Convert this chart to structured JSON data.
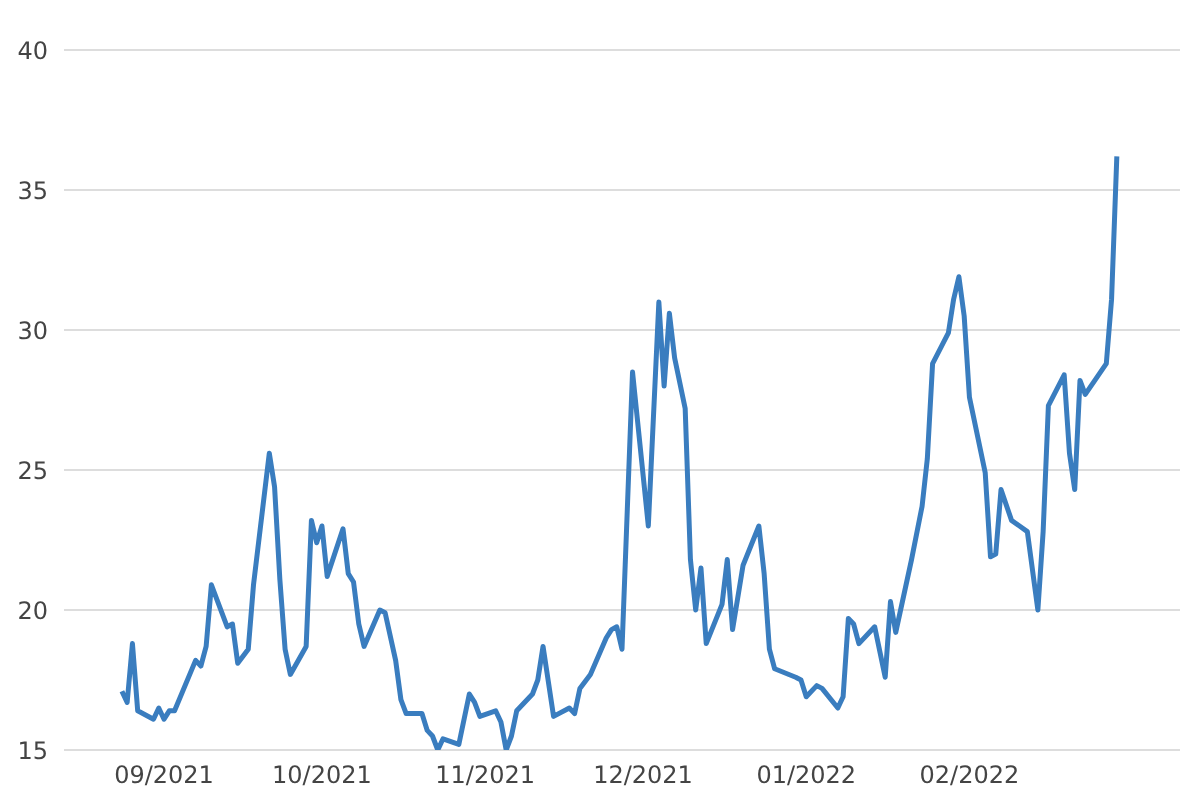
{
  "chart_data": {
    "type": "line",
    "x": [
      "2021-08-24",
      "2021-08-25",
      "2021-08-26",
      "2021-08-27",
      "2021-08-30",
      "2021-08-31",
      "2021-09-01",
      "2021-09-02",
      "2021-09-03",
      "2021-09-07",
      "2021-09-08",
      "2021-09-09",
      "2021-09-10",
      "2021-09-13",
      "2021-09-14",
      "2021-09-15",
      "2021-09-17",
      "2021-09-18",
      "2021-09-21",
      "2021-09-22",
      "2021-09-23",
      "2021-09-24",
      "2021-09-25",
      "2021-09-28",
      "2021-09-29",
      "2021-09-30",
      "2021-10-01",
      "2021-10-02",
      "2021-10-05",
      "2021-10-06",
      "2021-10-07",
      "2021-10-08",
      "2021-10-09",
      "2021-10-12",
      "2021-10-13",
      "2021-10-15",
      "2021-10-16",
      "2021-10-17",
      "2021-10-20",
      "2021-10-21",
      "2021-10-22",
      "2021-10-23",
      "2021-10-24",
      "2021-10-27",
      "2021-10-29",
      "2021-10-30",
      "2021-10-31",
      "2021-11-03",
      "2021-11-04",
      "2021-11-05",
      "2021-11-06",
      "2021-11-07",
      "2021-11-10",
      "2021-11-11",
      "2021-11-12",
      "2021-11-14",
      "2021-11-17",
      "2021-11-18",
      "2021-11-19",
      "2021-11-21",
      "2021-11-24",
      "2021-11-25",
      "2021-11-26",
      "2021-11-27",
      "2021-11-29",
      "2021-12-02",
      "2021-12-04",
      "2021-12-05",
      "2021-12-06",
      "2021-12-07",
      "2021-12-09",
      "2021-12-10",
      "2021-12-11",
      "2021-12-12",
      "2021-12-13",
      "2021-12-16",
      "2021-12-17",
      "2021-12-18",
      "2021-12-20",
      "2021-12-23",
      "2021-12-24",
      "2021-12-25",
      "2021-12-26",
      "2021-12-30",
      "2021-12-31",
      "2022-01-01",
      "2022-01-03",
      "2022-01-04",
      "2022-01-07",
      "2022-01-08",
      "2022-01-09",
      "2022-01-10",
      "2022-01-11",
      "2022-01-14",
      "2022-01-16",
      "2022-01-17",
      "2022-01-18",
      "2022-01-21",
      "2022-01-23",
      "2022-01-24",
      "2022-01-25",
      "2022-01-28",
      "2022-01-29",
      "2022-01-30",
      "2022-01-31",
      "2022-02-01",
      "2022-02-04",
      "2022-02-05",
      "2022-02-06",
      "2022-02-07",
      "2022-02-09",
      "2022-02-12",
      "2022-02-14",
      "2022-02-15",
      "2022-02-16",
      "2022-02-19",
      "2022-02-20",
      "2022-02-21",
      "2022-02-22",
      "2022-02-23",
      "2022-02-27",
      "2022-02-28",
      "2022-03-01"
    ],
    "series": [
      {
        "color": "#3a7dbf",
        "values": [
          17.1,
          16.7,
          18.8,
          16.4,
          16.1,
          16.5,
          16.1,
          16.4,
          16.4,
          18.2,
          18.0,
          18.7,
          20.9,
          19.4,
          19.5,
          18.1,
          18.6,
          20.9,
          25.6,
          24.4,
          21.1,
          18.6,
          17.7,
          18.7,
          23.2,
          22.4,
          23.0,
          21.2,
          22.9,
          21.3,
          21.0,
          19.5,
          18.7,
          20.0,
          19.9,
          18.2,
          16.8,
          16.3,
          16.3,
          15.7,
          15.5,
          15.0,
          15.4,
          15.2,
          17.0,
          16.7,
          16.2,
          16.4,
          16.0,
          15.0,
          15.5,
          16.4,
          17.0,
          17.5,
          18.7,
          16.2,
          16.5,
          16.3,
          17.2,
          17.7,
          19.0,
          19.3,
          19.4,
          18.6,
          28.5,
          23.0,
          31.0,
          28.0,
          30.6,
          29.0,
          27.2,
          21.8,
          20.0,
          21.5,
          18.8,
          20.2,
          21.8,
          19.3,
          21.6,
          23.0,
          21.3,
          18.6,
          17.9,
          17.6,
          17.5,
          16.9,
          17.3,
          17.2,
          16.5,
          16.9,
          19.7,
          19.5,
          18.8,
          19.4,
          17.6,
          20.3,
          19.2,
          21.8,
          23.7,
          25.4,
          28.8,
          29.9,
          31.1,
          31.9,
          30.5,
          27.6,
          24.9,
          21.9,
          22.0,
          24.3,
          23.2,
          22.8,
          20.0,
          22.8,
          27.3,
          28.4,
          25.6,
          24.3,
          28.2,
          27.7,
          28.8,
          31.1,
          36.2
        ]
      }
    ],
    "xlim": [
      "2021-08-13",
      "2022-03-13"
    ],
    "xticks": [
      {
        "value": "2021-09-01",
        "label": "09/2021"
      },
      {
        "value": "2021-10-01",
        "label": "10/2021"
      },
      {
        "value": "2021-11-01",
        "label": "11/2021"
      },
      {
        "value": "2021-12-01",
        "label": "12/2021"
      },
      {
        "value": "2022-01-01",
        "label": "01/2022"
      },
      {
        "value": "2022-02-01",
        "label": "02/2022"
      }
    ],
    "ylim": [
      15,
      40
    ],
    "yticks": [
      15,
      20,
      25,
      30,
      35,
      40
    ],
    "grid": "y"
  }
}
